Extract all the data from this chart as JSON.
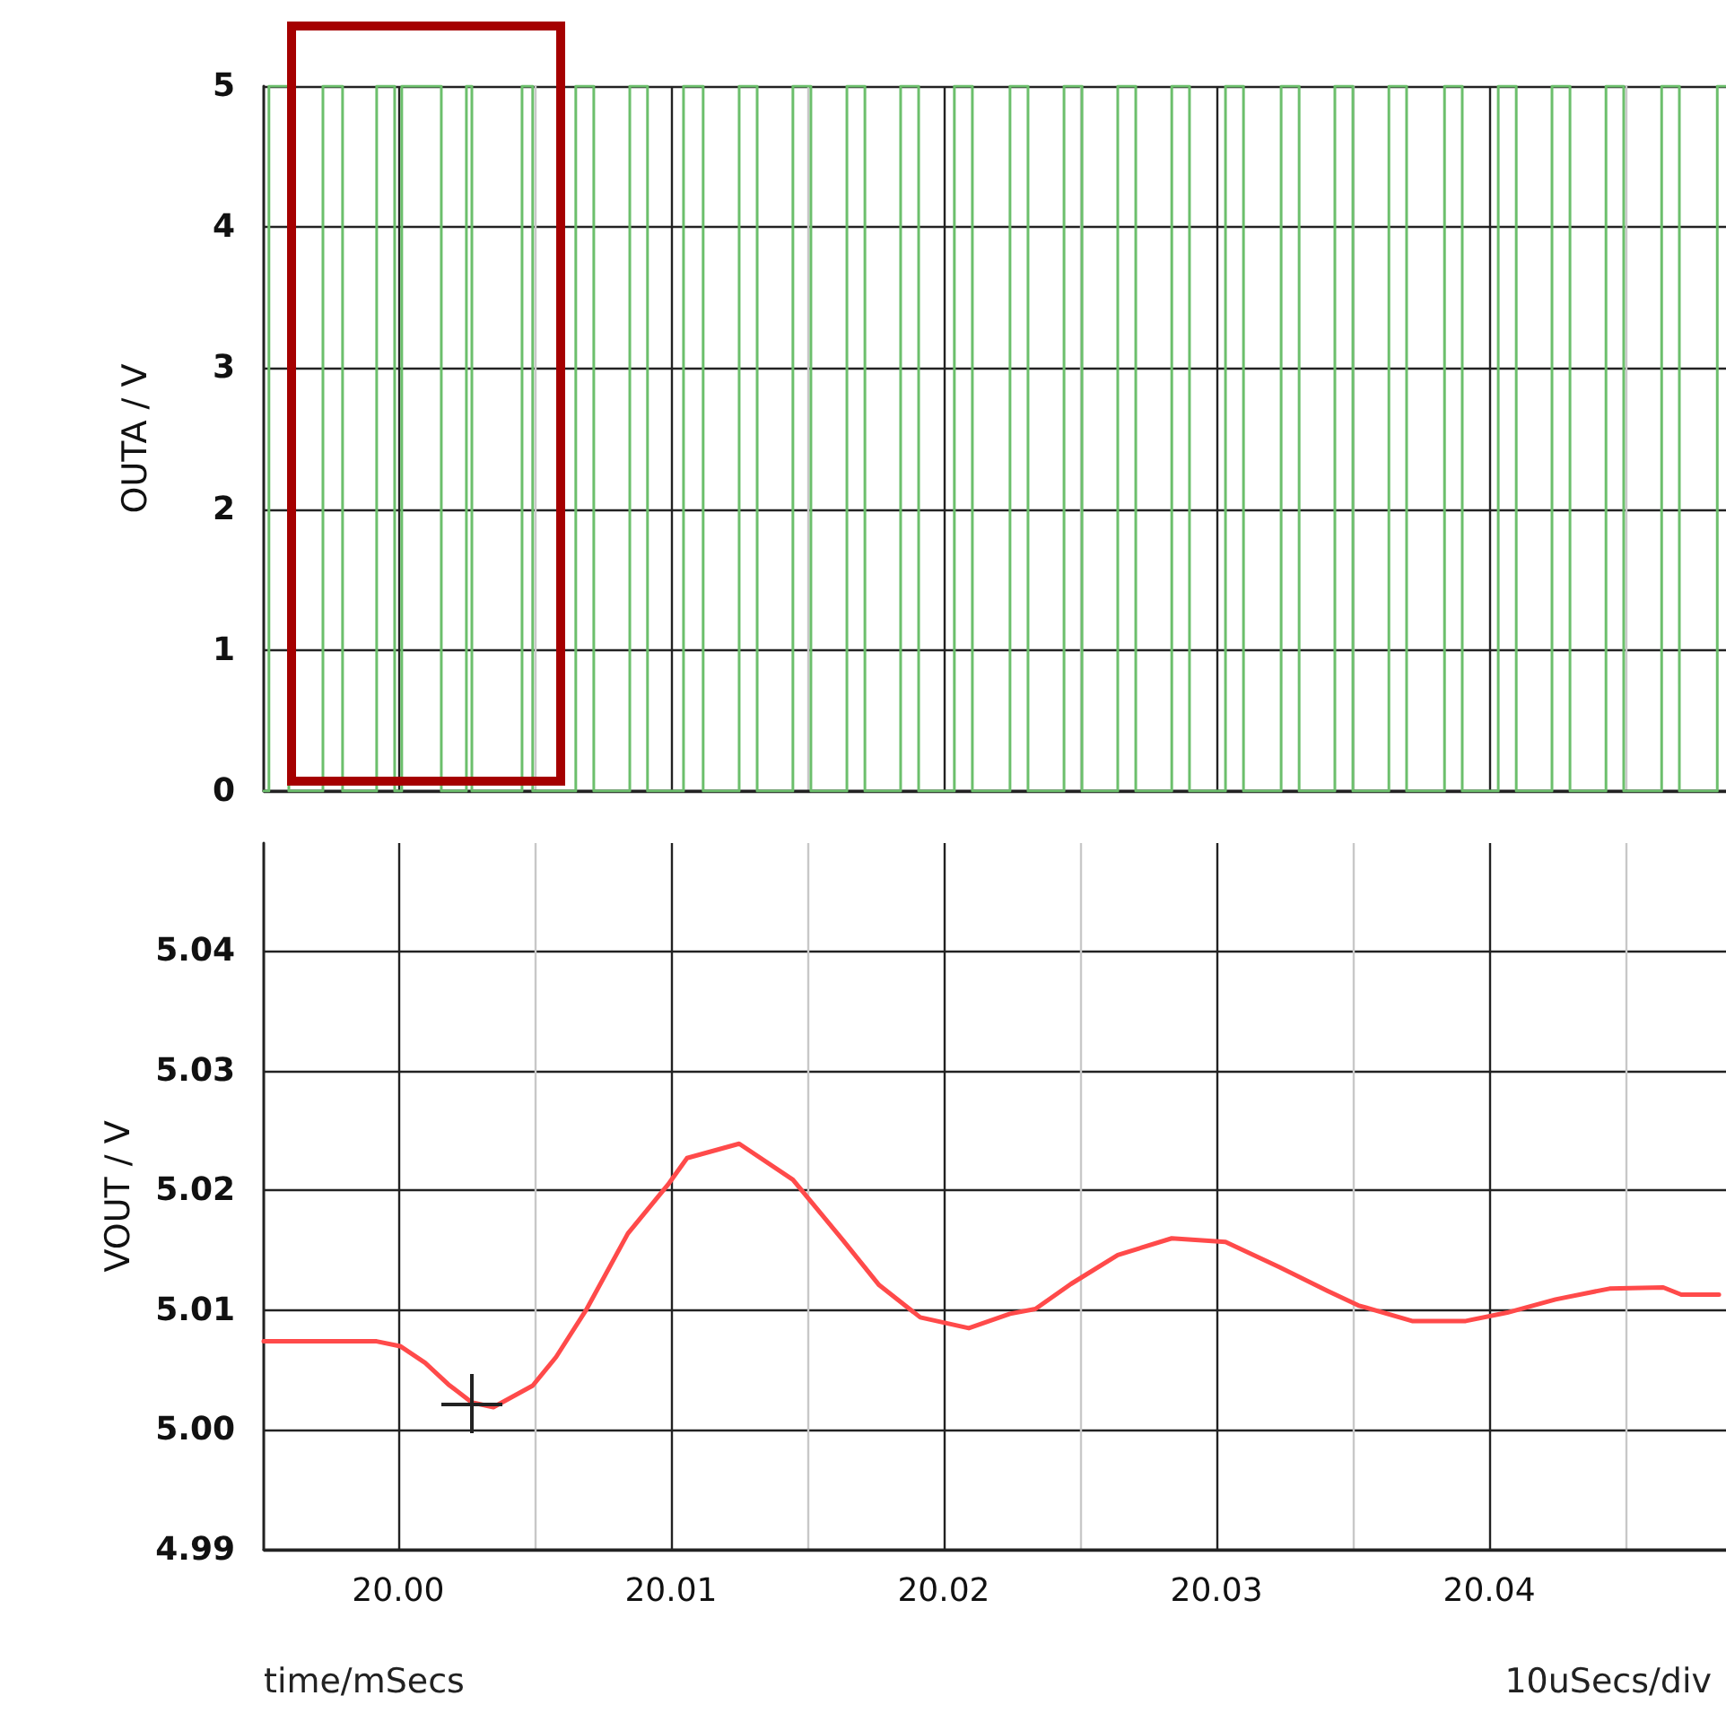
{
  "chart_data": [
    {
      "type": "step",
      "ylabel": "OUTA / V",
      "xlim": [
        19.99507,
        20.04868
      ],
      "ylim": [
        0,
        5
      ],
      "yticks": [
        0,
        1,
        2,
        3,
        4,
        5
      ],
      "xticks": [
        20,
        {
          "value": 20.005,
          "label": null
        },
        20.01,
        {
          "value": 20.015,
          "label": null
        },
        20.02,
        {
          "value": 20.025,
          "label": null
        },
        20.03,
        {
          "value": 20.035,
          "label": null
        },
        20.04,
        {
          "value": 20.045,
          "label": null
        }
      ],
      "tick_labels": "y",
      "grid": true,
      "series": [
        {
          "color": "#6cbf6c",
          "x": [
            19.99507,
            19.99526,
            19.99599,
            19.99724,
            19.99796,
            19.99921,
            19.99987,
            20.00013,
            20.00158,
            20.0025,
            20.0027,
            20.00454,
            20.00493,
            20.00651,
            20.00717,
            20.00849,
            20.00914,
            20.01046,
            20.01118,
            20.0125,
            20.01316,
            20.01447,
            20.01513,
            20.01645,
            20.01711,
            20.01842,
            20.01908,
            20.02039,
            20.02105,
            20.02243,
            20.02309,
            20.02441,
            20.02507,
            20.02638,
            20.02704,
            20.02836,
            20.02901,
            20.03033,
            20.03099,
            20.03237,
            20.03303,
            20.03434,
            20.035,
            20.03632,
            20.03697,
            20.03836,
            20.03901,
            20.04033,
            20.04099,
            20.0423,
            20.04296,
            20.04428,
            20.04493,
            20.04632,
            20.04697,
            20.04836,
            20.04868
          ],
          "values": [
            0,
            5,
            0,
            5,
            0,
            5,
            0,
            5,
            0,
            5,
            0,
            5,
            0,
            5,
            0,
            5,
            0,
            5,
            0,
            5,
            0,
            5,
            0,
            5,
            0,
            5,
            0,
            5,
            0,
            5,
            0,
            5,
            0,
            5,
            0,
            5,
            0,
            5,
            0,
            5,
            0,
            5,
            0,
            5,
            0,
            5,
            0,
            5,
            0,
            5,
            0,
            5,
            0,
            5,
            0,
            5,
            5
          ]
        }
      ]
    },
    {
      "type": "line",
      "ylabel": "VOUT / V",
      "xlim": [
        19.99507,
        20.04868
      ],
      "ylim": [
        4.99,
        5.049
      ],
      "yticks": [
        {
          "value": 4.99,
          "label": "4.99"
        },
        {
          "value": 5,
          "label": "5.00"
        },
        {
          "value": 5.01,
          "label": "5.01"
        },
        {
          "value": 5.02,
          "label": "5.02"
        },
        {
          "value": 5.03,
          "label": "5.03"
        },
        {
          "value": 5.04,
          "label": "5.04"
        }
      ],
      "xticks": [
        {
          "value": 20,
          "label": "20.00"
        },
        {
          "value": 20.005,
          "label": null
        },
        {
          "value": 20.01,
          "label": "20.01"
        },
        {
          "value": 20.015,
          "label": null
        },
        {
          "value": 20.02,
          "label": "20.02"
        },
        {
          "value": 20.025,
          "label": null
        },
        {
          "value": 20.03,
          "label": "20.03"
        },
        {
          "value": 20.035,
          "label": null
        },
        {
          "value": 20.04,
          "label": "20.04"
        },
        {
          "value": 20.045,
          "label": null
        }
      ],
      "grid": true,
      "annotations": [
        "time/mSecs",
        "10uSecs/div"
      ],
      "series": [
        {
          "color": "#ff4a4a",
          "x": [
            19.99507,
            19.99724,
            19.99921,
            20.00007,
            20.00099,
            20.00184,
            20.0027,
            20.00349,
            20.00493,
            20.00579,
            20.00691,
            20.00842,
            20.00993,
            20.01059,
            20.0125,
            20.01447,
            20.01632,
            20.01763,
            20.01914,
            20.02092,
            20.02243,
            20.02336,
            20.02467,
            20.02638,
            20.02836,
            20.03033,
            20.0323,
            20.03408,
            20.0352,
            20.03717,
            20.03914,
            20.04066,
            20.04243,
            20.04441,
            20.04638,
            20.04704,
            20.04842
          ],
          "values": [
            5.0074,
            5.0074,
            5.0074,
            5.007,
            5.0056,
            5.0038,
            5.0023,
            5.0019,
            5.0037,
            5.0061,
            5.0101,
            5.0164,
            5.0206,
            5.0227,
            5.0239,
            5.0209,
            5.0158,
            5.0121,
            5.0094,
            5.0085,
            5.0097,
            5.0101,
            5.0122,
            5.0146,
            5.016,
            5.0157,
            5.0136,
            5.0116,
            5.0104,
            5.0091,
            5.0091,
            5.0098,
            5.0109,
            5.0118,
            5.0119,
            5.0113,
            5.0113
          ]
        }
      ]
    }
  ]
}
